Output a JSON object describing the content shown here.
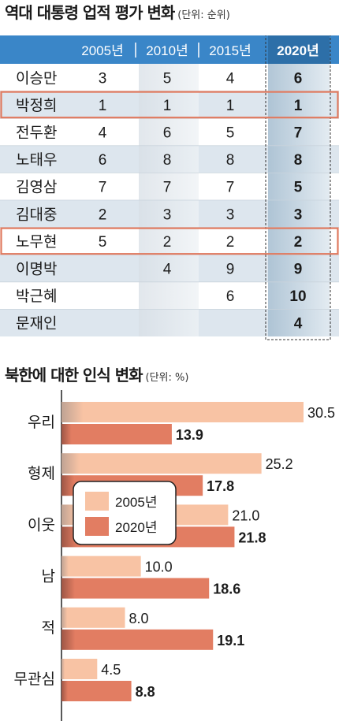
{
  "table": {
    "title": "역대 대통령 업적 평가 변화",
    "unit": "(단위: 순위)",
    "columns": [
      "2005년",
      "2010년",
      "2015년",
      "2020년"
    ],
    "rows": [
      {
        "name": "이승만",
        "values": [
          "3",
          "5",
          "4",
          "6"
        ],
        "highlight": false
      },
      {
        "name": "박정희",
        "values": [
          "1",
          "1",
          "1",
          "1"
        ],
        "highlight": true
      },
      {
        "name": "전두환",
        "values": [
          "4",
          "6",
          "5",
          "7"
        ],
        "highlight": false
      },
      {
        "name": "노태우",
        "values": [
          "6",
          "8",
          "8",
          "8"
        ],
        "highlight": false
      },
      {
        "name": "김영삼",
        "values": [
          "7",
          "7",
          "7",
          "5"
        ],
        "highlight": false
      },
      {
        "name": "김대중",
        "values": [
          "2",
          "3",
          "3",
          "3"
        ],
        "highlight": false
      },
      {
        "name": "노무현",
        "values": [
          "5",
          "2",
          "2",
          "2"
        ],
        "highlight": true
      },
      {
        "name": "이명박",
        "values": [
          "",
          "4",
          "9",
          "9"
        ],
        "highlight": false
      },
      {
        "name": "박근혜",
        "values": [
          "",
          "",
          "6",
          "10"
        ],
        "highlight": false
      },
      {
        "name": "문재인",
        "values": [
          "",
          "",
          "",
          "4"
        ],
        "highlight": false
      }
    ],
    "colors": {
      "header": "#3a86c8",
      "row_alt": "#dde6ee",
      "highlight_border": "#e07a5f",
      "col2020": "#b9cedc"
    }
  },
  "chart": {
    "title": "북한에 대한 인식 변화",
    "unit": "(단위: %)"
  },
  "chart_data": {
    "type": "bar",
    "orientation": "horizontal",
    "categories": [
      "우리",
      "형제",
      "이웃",
      "남",
      "적",
      "무관심"
    ],
    "series": [
      {
        "name": "2005년",
        "values": [
          30.5,
          25.2,
          21.0,
          10.0,
          8.0,
          4.5
        ],
        "color": "#f8c3a4"
      },
      {
        "name": "2020년",
        "values": [
          13.9,
          17.8,
          21.8,
          18.6,
          19.1,
          8.8
        ],
        "color": "#e27d62"
      }
    ],
    "value_labels": [
      [
        "30.5",
        "25.2",
        "21.0",
        "10.0",
        "8.0",
        "4.5"
      ],
      [
        "13.9",
        "17.8",
        "21.8",
        "18.6",
        "19.1",
        "8.8"
      ]
    ],
    "xlim": [
      0,
      31
    ],
    "legend": "center",
    "grid": false
  }
}
